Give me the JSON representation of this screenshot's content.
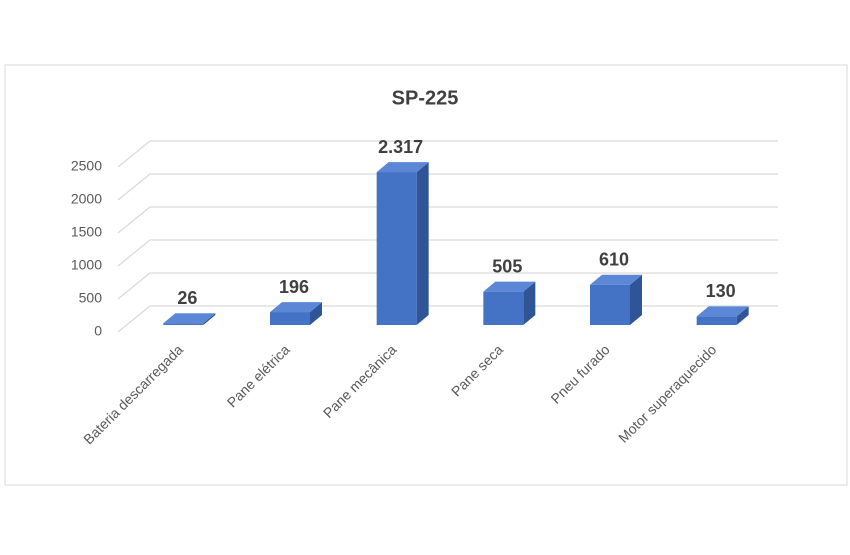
{
  "chart_data": {
    "type": "bar",
    "title": "SP-225",
    "categories": [
      "Bateria descarregada",
      "Pane elétrica",
      "Pane mecânica",
      "Pane seca",
      "Pneu furado",
      "Motor superaquecido"
    ],
    "values": [
      26,
      196,
      2317,
      505,
      610,
      130
    ],
    "value_labels": [
      "26",
      "196",
      "2.317",
      "505",
      "610",
      "130"
    ],
    "color": "#4472c4",
    "ylim": [
      0,
      2500
    ],
    "yticks": [
      0,
      500,
      1000,
      1500,
      2000,
      2500
    ],
    "grid": true
  }
}
